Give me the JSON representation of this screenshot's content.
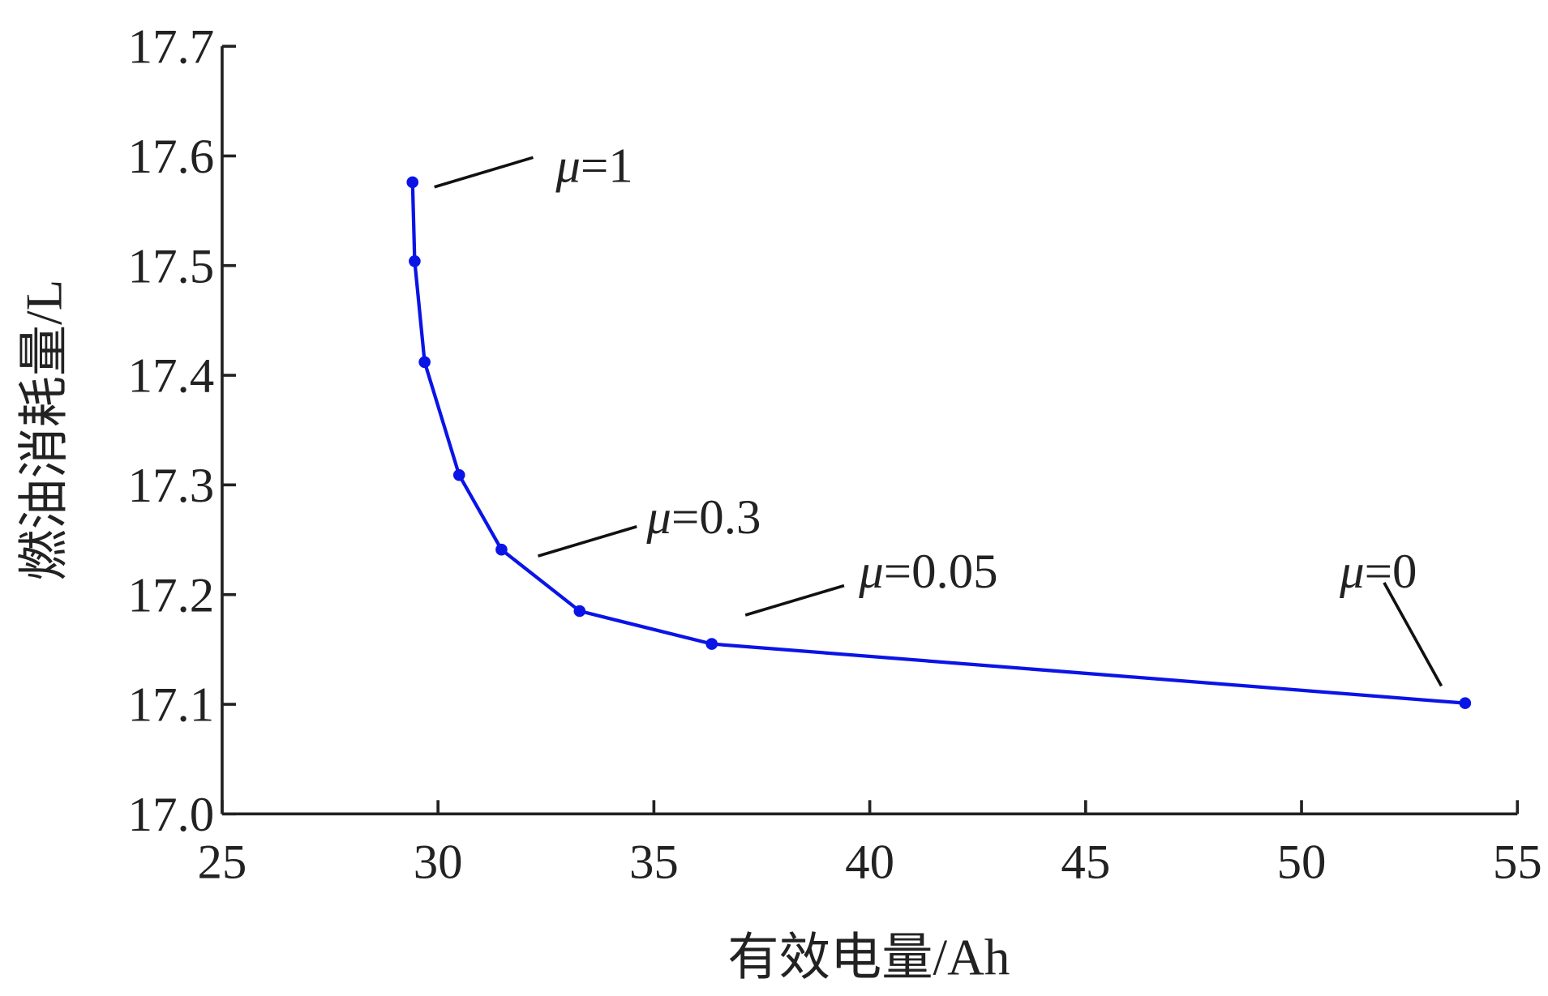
{
  "chart_data": {
    "type": "line",
    "x_label": "有效电量/Ah",
    "y_label": "燃油消耗量/L",
    "x": [
      29.41,
      29.46,
      29.69,
      30.49,
      31.47,
      33.28,
      36.34,
      53.79
    ],
    "series": [
      {
        "color": "#0a14e6",
        "values": [
          17.576,
          17.504,
          17.412,
          17.309,
          17.241,
          17.185,
          17.155,
          17.101
        ]
      }
    ],
    "xlim": [
      25,
      55
    ],
    "xticks": [
      25,
      30,
      35,
      40,
      45,
      50,
      55
    ],
    "ylim": [
      17.0,
      17.7
    ],
    "yticks": [
      {
        "value": 17.0,
        "label": "17.0"
      },
      17.1,
      17.2,
      17.3,
      17.4,
      17.5,
      17.6,
      17.7
    ],
    "annotations": [
      "μ=1",
      "μ=0.3",
      "μ=0.05",
      "μ=0"
    ],
    "grid": false
  }
}
